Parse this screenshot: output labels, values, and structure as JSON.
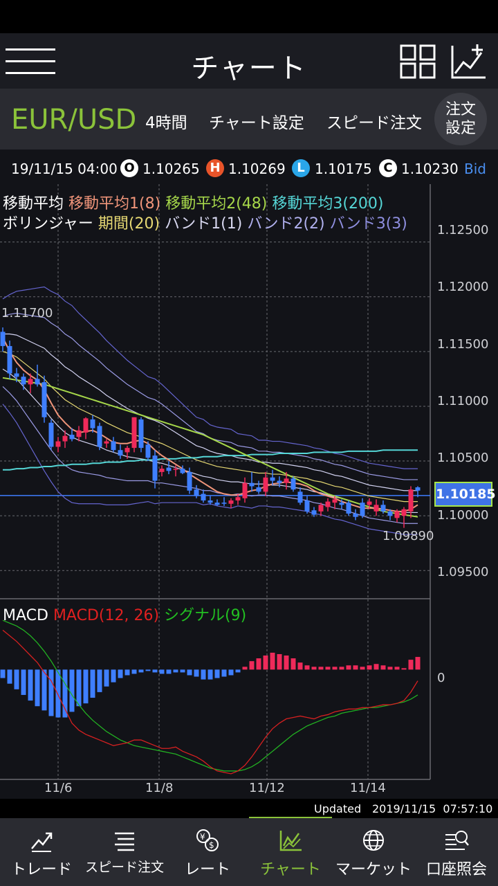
{
  "header": {
    "title": "チャート"
  },
  "toolbar": {
    "pair": "EUR/USD",
    "timeframe": "4時間",
    "chart_settings": "チャート設定",
    "speed_order": "スピード注文",
    "order_settings_line1": "注文",
    "order_settings_line2": "設定"
  },
  "quote": {
    "datetime": "19/11/15 04:00",
    "open_badge": "O",
    "open": "1.10265",
    "high_badge": "H",
    "high": "1.10269",
    "low_badge": "L",
    "low": "1.10175",
    "close_badge": "C",
    "close": "1.10230",
    "side": "Bid"
  },
  "legend": {
    "ma": "移動平均",
    "ma1": "移動平均1(8)",
    "ma2": "移動平均2(48)",
    "ma3": "移動平均3(200)",
    "bb": "ボリンジャー",
    "period": "期間(20)",
    "band1": "バンド1(1)",
    "band2": "バンド2(2)",
    "band3": "バンド3(3)",
    "macd": "MACD",
    "macd_param": "MACD(12, 26)",
    "signal": "シグナル(9)"
  },
  "price_labels": {
    "high": "1.11700",
    "low": "1.09890",
    "current": "1.10185"
  },
  "y_ticks": [
    "1.12500",
    "1.12000",
    "1.11500",
    "1.11000",
    "1.10500",
    "1.10000",
    "1.09500"
  ],
  "macd_zero": "0",
  "x_ticks": [
    "11/6",
    "11/8",
    "11/12",
    "11/14"
  ],
  "colors": {
    "up": "#ee2a5a",
    "down": "#3f7fff",
    "ma1": "#f0957a",
    "ma2": "#a6d74a",
    "ma3": "#55d6d6",
    "bb_mid": "#e6d873",
    "bb_band": "#8f8fe0",
    "macd": "#d62020",
    "signal": "#22b022",
    "accent": "#8bc33a"
  },
  "updated": {
    "label": "Updated",
    "time": "2019/11/15  07:57:10"
  },
  "nav": [
    {
      "label": "トレード",
      "icon": "trade-icon"
    },
    {
      "label": "スピード注文",
      "icon": "speed-order-icon"
    },
    {
      "label": "レート",
      "icon": "rate-icon"
    },
    {
      "label": "チャート",
      "icon": "chart-icon",
      "active": true
    },
    {
      "label": "マーケット",
      "icon": "market-icon"
    },
    {
      "label": "口座照会",
      "icon": "account-icon"
    }
  ],
  "chart_data": {
    "type": "candlestick",
    "symbol": "EUR/USD",
    "timeframe": "4時間",
    "x_ticks": [
      "11/6",
      "11/8",
      "11/12",
      "11/14"
    ],
    "ylim": [
      1.0935,
      1.127
    ],
    "candles": [
      {
        "o": 1.1168,
        "h": 1.1172,
        "l": 1.115,
        "c": 1.1155
      },
      {
        "o": 1.1155,
        "h": 1.116,
        "l": 1.1125,
        "c": 1.113
      },
      {
        "o": 1.113,
        "h": 1.1135,
        "l": 1.1122,
        "c": 1.1127
      },
      {
        "o": 1.1127,
        "h": 1.113,
        "l": 1.1115,
        "c": 1.112
      },
      {
        "o": 1.112,
        "h": 1.113,
        "l": 1.1112,
        "c": 1.1125
      },
      {
        "o": 1.1125,
        "h": 1.1138,
        "l": 1.1118,
        "c": 1.112
      },
      {
        "o": 1.1122,
        "h": 1.1128,
        "l": 1.1085,
        "c": 1.109
      },
      {
        "o": 1.1085,
        "h": 1.1088,
        "l": 1.106,
        "c": 1.1063
      },
      {
        "o": 1.1063,
        "h": 1.1072,
        "l": 1.1058,
        "c": 1.1068
      },
      {
        "o": 1.1068,
        "h": 1.1078,
        "l": 1.1062,
        "c": 1.1073
      },
      {
        "o": 1.1074,
        "h": 1.108,
        "l": 1.1068,
        "c": 1.107
      },
      {
        "o": 1.1072,
        "h": 1.1082,
        "l": 1.1068,
        "c": 1.1078
      },
      {
        "o": 1.1076,
        "h": 1.109,
        "l": 1.107,
        "c": 1.1089
      },
      {
        "o": 1.1088,
        "h": 1.1092,
        "l": 1.1076,
        "c": 1.108
      },
      {
        "o": 1.1082,
        "h": 1.1085,
        "l": 1.106,
        "c": 1.1063
      },
      {
        "o": 1.1066,
        "h": 1.107,
        "l": 1.1062,
        "c": 1.1068
      },
      {
        "o": 1.1068,
        "h": 1.1072,
        "l": 1.1058,
        "c": 1.106
      },
      {
        "o": 1.106,
        "h": 1.1065,
        "l": 1.1052,
        "c": 1.1055
      },
      {
        "o": 1.1058,
        "h": 1.1064,
        "l": 1.1052,
        "c": 1.1062
      },
      {
        "o": 1.1062,
        "h": 1.109,
        "l": 1.1058,
        "c": 1.109
      },
      {
        "o": 1.1088,
        "h": 1.109,
        "l": 1.1058,
        "c": 1.1062
      },
      {
        "o": 1.1065,
        "h": 1.1068,
        "l": 1.105,
        "c": 1.1053
      },
      {
        "o": 1.1055,
        "h": 1.106,
        "l": 1.1025,
        "c": 1.1032
      },
      {
        "o": 1.104,
        "h": 1.1046,
        "l": 1.1036,
        "c": 1.1043
      },
      {
        "o": 1.1044,
        "h": 1.105,
        "l": 1.1038,
        "c": 1.1041
      },
      {
        "o": 1.1042,
        "h": 1.1046,
        "l": 1.1036,
        "c": 1.1043
      },
      {
        "o": 1.1043,
        "h": 1.1046,
        "l": 1.1038,
        "c": 1.1039
      },
      {
        "o": 1.104,
        "h": 1.1044,
        "l": 1.102,
        "c": 1.1023
      },
      {
        "o": 1.1024,
        "h": 1.1028,
        "l": 1.1016,
        "c": 1.1018
      },
      {
        "o": 1.102,
        "h": 1.1024,
        "l": 1.1012,
        "c": 1.1014
      },
      {
        "o": 1.1014,
        "h": 1.1018,
        "l": 1.101,
        "c": 1.1012
      },
      {
        "o": 1.1012,
        "h": 1.1015,
        "l": 1.1009,
        "c": 1.101
      },
      {
        "o": 1.1012,
        "h": 1.1017,
        "l": 1.1009,
        "c": 1.1011
      },
      {
        "o": 1.1011,
        "h": 1.1016,
        "l": 1.1007,
        "c": 1.1014
      },
      {
        "o": 1.1014,
        "h": 1.102,
        "l": 1.101,
        "c": 1.1017
      },
      {
        "o": 1.1016,
        "h": 1.1035,
        "l": 1.1012,
        "c": 1.103
      },
      {
        "o": 1.103,
        "h": 1.104,
        "l": 1.1022,
        "c": 1.1027
      },
      {
        "o": 1.1026,
        "h": 1.1032,
        "l": 1.102,
        "c": 1.1022
      },
      {
        "o": 1.1022,
        "h": 1.104,
        "l": 1.1018,
        "c": 1.1035
      },
      {
        "o": 1.1035,
        "h": 1.1042,
        "l": 1.1028,
        "c": 1.1032
      },
      {
        "o": 1.1032,
        "h": 1.1036,
        "l": 1.1026,
        "c": 1.103
      },
      {
        "o": 1.103,
        "h": 1.104,
        "l": 1.1024,
        "c": 1.1034
      },
      {
        "o": 1.1034,
        "h": 1.1036,
        "l": 1.1022,
        "c": 1.1024
      },
      {
        "o": 1.1022,
        "h": 1.1026,
        "l": 1.101,
        "c": 1.1012
      },
      {
        "o": 1.1014,
        "h": 1.1018,
        "l": 1.1002,
        "c": 1.1004
      },
      {
        "o": 1.1005,
        "h": 1.1008,
        "l": 1.0999,
        "c": 1.1001
      },
      {
        "o": 1.1004,
        "h": 1.1012,
        "l": 1.1,
        "c": 1.101
      },
      {
        "o": 1.1008,
        "h": 1.1016,
        "l": 1.1004,
        "c": 1.1013
      },
      {
        "o": 1.1012,
        "h": 1.1018,
        "l": 1.1006,
        "c": 1.1015
      },
      {
        "o": 1.1012,
        "h": 1.1015,
        "l": 1.1006,
        "c": 1.101
      },
      {
        "o": 1.1012,
        "h": 1.1014,
        "l": 1.1,
        "c": 1.1002
      },
      {
        "o": 1.1002,
        "h": 1.1006,
        "l": 1.0996,
        "c": 1.0999
      },
      {
        "o": 1.1012,
        "h": 1.1016,
        "l": 1.0998,
        "c": 1.1
      },
      {
        "o": 1.101,
        "h": 1.1016,
        "l": 1.1006,
        "c": 1.1013
      },
      {
        "o": 1.1004,
        "h": 1.1015,
        "l": 1.1,
        "c": 1.101
      },
      {
        "o": 1.101,
        "h": 1.1014,
        "l": 1.1002,
        "c": 1.1004
      },
      {
        "o": 1.1004,
        "h": 1.1006,
        "l": 1.0996,
        "c": 1.1
      },
      {
        "o": 1.0998,
        "h": 1.1006,
        "l": 1.0994,
        "c": 1.1004
      },
      {
        "o": 1.1,
        "h": 1.1008,
        "l": 1.0989,
        "c": 1.1006
      },
      {
        "o": 1.1004,
        "h": 1.1027,
        "l": 1.0998,
        "c": 1.1024
      },
      {
        "o": 1.1026,
        "h": 1.1027,
        "l": 1.1017,
        "c": 1.1023
      }
    ],
    "ma1": [
      1.1163,
      1.115,
      1.114,
      1.1133,
      1.1128,
      1.1124,
      1.1115,
      1.1103,
      1.1092,
      1.1085,
      1.1079,
      1.1076,
      1.1077,
      1.1078,
      1.1075,
      1.1071,
      1.1067,
      1.1066,
      1.1066,
      1.1068,
      1.1069,
      1.1066,
      1.106,
      1.1055,
      1.1051,
      1.1047,
      1.1043,
      1.1038,
      1.1034,
      1.103,
      1.1026,
      1.1022,
      1.102,
      1.1019,
      1.1019,
      1.1021,
      1.1023,
      1.1024,
      1.1027,
      1.1029,
      1.103,
      1.1031,
      1.103,
      1.1029,
      1.1027,
      1.1023,
      1.102,
      1.1018,
      1.1016,
      1.1013,
      1.1011,
      1.1009,
      1.1007,
      1.1007,
      1.1007,
      1.1006,
      1.1005,
      1.1004,
      1.1004,
      1.1006,
      1.101
    ],
    "ma2": [
      1.1126,
      1.1125,
      1.1124,
      1.1123,
      1.1122,
      1.1121,
      1.112,
      1.1118,
      1.1116,
      1.1114,
      1.1112,
      1.111,
      1.1108,
      1.1106,
      1.1104,
      1.1102,
      1.11,
      1.1098,
      1.1096,
      1.1094,
      1.1092,
      1.109,
      1.1088,
      1.1086,
      1.1084,
      1.1082,
      1.108,
      1.1078,
      1.1076,
      1.1074,
      1.1071,
      1.1068,
      1.1065,
      1.1062,
      1.1059,
      1.1056,
      1.1053,
      1.105,
      1.1047,
      1.1044,
      1.1041,
      1.1038,
      1.1035,
      1.1032,
      1.1029,
      1.1026,
      1.1023,
      1.102,
      1.1018,
      1.1016,
      1.1014,
      1.1012,
      1.101,
      1.1008,
      1.1006,
      1.1004,
      1.1003,
      1.1002,
      1.1001,
      1.1,
      1.0999
    ],
    "ma3": [
      1.1042,
      1.1042,
      1.1043,
      1.1043,
      1.1044,
      1.1044,
      1.1045,
      1.1045,
      1.1046,
      1.1046,
      1.1047,
      1.1047,
      1.1047,
      1.1048,
      1.1048,
      1.1049,
      1.1049,
      1.1049,
      1.105,
      1.105,
      1.1051,
      1.1051,
      1.1051,
      1.1052,
      1.1052,
      1.1052,
      1.1053,
      1.1053,
      1.1053,
      1.1054,
      1.1054,
      1.1054,
      1.1055,
      1.1055,
      1.1055,
      1.1055,
      1.1056,
      1.1056,
      1.1056,
      1.1056,
      1.1057,
      1.1057,
      1.1057,
      1.1057,
      1.1057,
      1.1058,
      1.1058,
      1.1058,
      1.1058,
      1.1058,
      1.1059,
      1.1059,
      1.1059,
      1.1059,
      1.1059,
      1.106,
      1.106,
      1.106,
      1.106,
      1.106,
      1.106
    ],
    "bb_mid": [
      1.115,
      1.1148,
      1.1145,
      1.114,
      1.1135,
      1.113,
      1.1125,
      1.1118,
      1.1112,
      1.1106,
      1.1102,
      1.1098,
      1.1095,
      1.1092,
      1.1089,
      1.1085,
      1.1082,
      1.1079,
      1.1076,
      1.1074,
      1.1072,
      1.107,
      1.1068,
      1.1066,
      1.1063,
      1.106,
      1.1057,
      1.1054,
      1.1051,
      1.1049,
      1.1047,
      1.1045,
      1.1044,
      1.1043,
      1.1042,
      1.1041,
      1.104,
      1.1039,
      1.1039,
      1.1038,
      1.1038,
      1.1037,
      1.1036,
      1.1035,
      1.1034,
      1.1032,
      1.1031,
      1.1029,
      1.1027,
      1.1026,
      1.1024,
      1.1022,
      1.102,
      1.1018,
      1.1017,
      1.1016,
      1.1015,
      1.1014,
      1.1013,
      1.1013,
      1.1013
    ],
    "bb_sigma": [
      0.0016,
      0.0018,
      0.002,
      0.0022,
      0.0024,
      0.0026,
      0.0028,
      0.0029,
      0.003,
      0.003,
      0.003,
      0.0029,
      0.0028,
      0.0027,
      0.0026,
      0.0025,
      0.0024,
      0.0023,
      0.0022,
      0.0021,
      0.002,
      0.0019,
      0.0019,
      0.0018,
      0.0017,
      0.0016,
      0.0015,
      0.0014,
      0.0013,
      0.0013,
      0.0012,
      0.0012,
      0.0012,
      0.0012,
      0.0011,
      0.0011,
      0.0011,
      0.001,
      0.001,
      0.001,
      0.001,
      0.001,
      0.001,
      0.001,
      0.001,
      0.001,
      0.001,
      0.001,
      0.001,
      0.001,
      0.001,
      0.001,
      0.001,
      0.001,
      0.001,
      0.001,
      0.001,
      0.001,
      0.001,
      0.001,
      0.001
    ],
    "macd_hist": [
      -0.6,
      -1.0,
      -1.4,
      -1.8,
      -2.2,
      -2.6,
      -2.9,
      -3.3,
      -3.4,
      -3.4,
      -3.0,
      -2.6,
      -2.4,
      -2.0,
      -1.6,
      -1.2,
      -0.9,
      -0.6,
      -0.4,
      -0.3,
      -0.2,
      -0.1,
      -0.2,
      -0.3,
      -0.3,
      -0.2,
      -0.2,
      -0.4,
      -0.5,
      -0.7,
      -0.7,
      -0.6,
      -0.5,
      -0.4,
      -0.2,
      0.2,
      0.6,
      0.8,
      1.0,
      1.2,
      1.1,
      1.0,
      0.8,
      0.5,
      0.3,
      0.2,
      0.2,
      0.2,
      0.2,
      0.2,
      0.3,
      0.3,
      0.2,
      0.3,
      0.4,
      0.3,
      0.2,
      0.2,
      0.1,
      0.7,
      0.9
    ],
    "macd_line": [
      2.8,
      2.4,
      2.0,
      1.5,
      1.0,
      0.5,
      -0.2,
      -0.8,
      -1.8,
      -2.8,
      -3.8,
      -4.3,
      -4.6,
      -4.8,
      -5.0,
      -5.2,
      -5.4,
      -5.3,
      -5.2,
      -5.0,
      -5.0,
      -5.2,
      -5.4,
      -5.6,
      -5.6,
      -5.5,
      -5.8,
      -6.0,
      -6.2,
      -6.5,
      -6.9,
      -7.2,
      -7.3,
      -7.4,
      -7.2,
      -6.8,
      -6.2,
      -5.5,
      -4.8,
      -4.2,
      -3.8,
      -3.5,
      -3.4,
      -3.3,
      -3.4,
      -3.5,
      -3.3,
      -3.2,
      -3.0,
      -2.9,
      -2.8,
      -2.8,
      -2.7,
      -2.7,
      -2.6,
      -2.5,
      -2.5,
      -2.4,
      -2.2,
      -1.6,
      -0.8
    ],
    "signal_line": [
      3.5,
      3.3,
      3.1,
      2.8,
      2.4,
      1.9,
      1.3,
      0.6,
      -0.2,
      -1.0,
      -1.8,
      -2.5,
      -3.1,
      -3.6,
      -4.0,
      -4.4,
      -4.7,
      -5.0,
      -5.2,
      -5.4,
      -5.5,
      -5.6,
      -5.7,
      -5.8,
      -5.9,
      -6.0,
      -6.2,
      -6.4,
      -6.6,
      -6.8,
      -7.0,
      -7.1,
      -7.2,
      -7.2,
      -7.2,
      -7.1,
      -6.9,
      -6.6,
      -6.2,
      -5.8,
      -5.4,
      -5.0,
      -4.6,
      -4.3,
      -4.0,
      -3.8,
      -3.6,
      -3.4,
      -3.3,
      -3.1,
      -3.0,
      -2.9,
      -2.8,
      -2.7,
      -2.7,
      -2.6,
      -2.5,
      -2.4,
      -2.3,
      -2.1,
      -1.8
    ],
    "macd_ylim": [
      -7.8,
      4.0
    ]
  }
}
